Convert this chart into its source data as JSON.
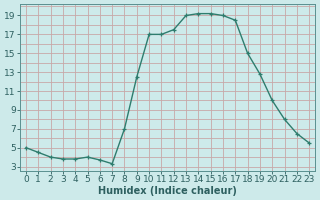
{
  "x": [
    0,
    1,
    2,
    3,
    4,
    5,
    6,
    7,
    8,
    9,
    10,
    11,
    12,
    13,
    14,
    15,
    16,
    17,
    18,
    19,
    20,
    21,
    22,
    23
  ],
  "y": [
    5.0,
    4.5,
    4.0,
    3.8,
    3.8,
    4.0,
    3.7,
    3.3,
    7.0,
    12.5,
    17.0,
    17.0,
    17.5,
    19.0,
    19.2,
    19.2,
    19.0,
    18.5,
    15.0,
    12.8,
    10.0,
    8.0,
    6.5,
    5.5
  ],
  "line_color": "#2e7d6e",
  "bg_color": "#cdeaea",
  "grid_color": "#c8a8a8",
  "xlabel": "Humidex (Indice chaleur)",
  "xlabel_fontsize": 7,
  "yticks": [
    3,
    5,
    7,
    9,
    11,
    13,
    15,
    17,
    19
  ],
  "xlim": [
    -0.5,
    23.5
  ],
  "ylim": [
    2.5,
    20.2
  ],
  "tick_color": "#2e6060",
  "tick_fontsize": 6.5
}
